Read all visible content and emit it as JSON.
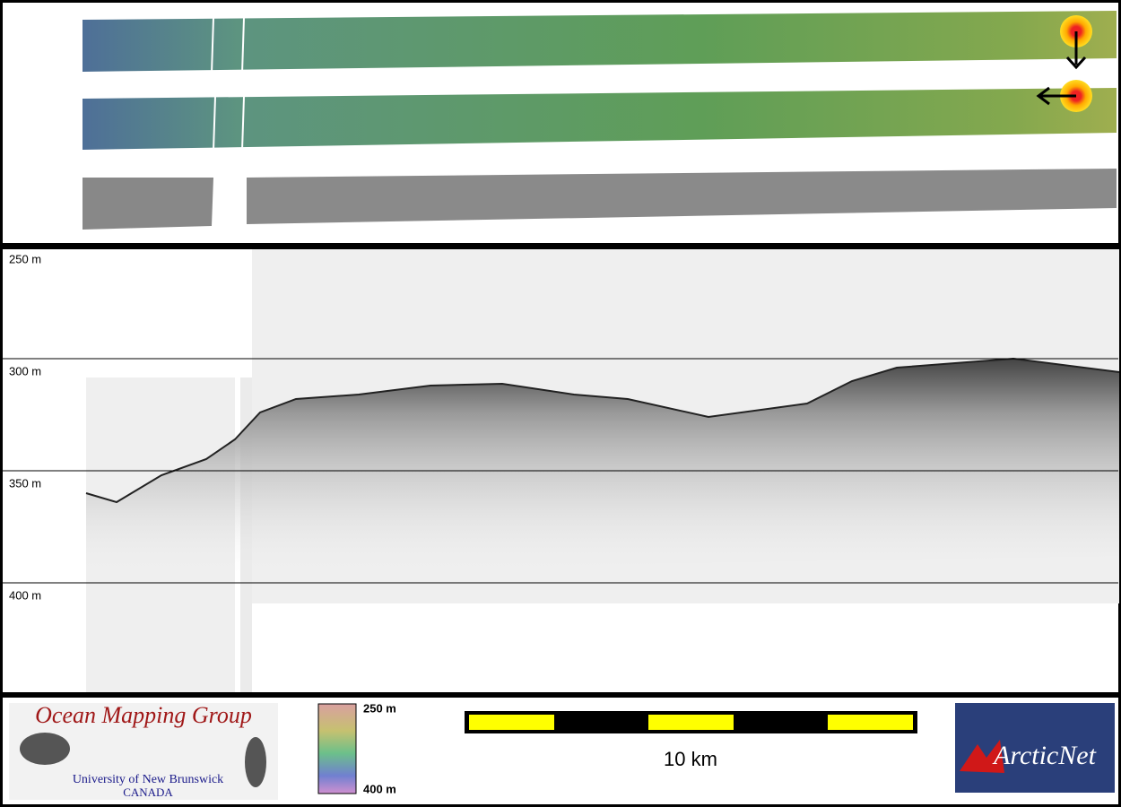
{
  "depth_axis": {
    "labels": [
      "250 m",
      "300 m",
      "350 m",
      "400 m"
    ]
  },
  "logos": {
    "omg": {
      "title": "Ocean Mapping Group",
      "line1": "University of New Brunswick",
      "line2": "CANADA"
    },
    "arcticnet": "ArcticNet"
  },
  "colorbar": {
    "top": "250 m",
    "bottom": "400 m"
  },
  "scale_bar": {
    "label": "10 km"
  }
}
